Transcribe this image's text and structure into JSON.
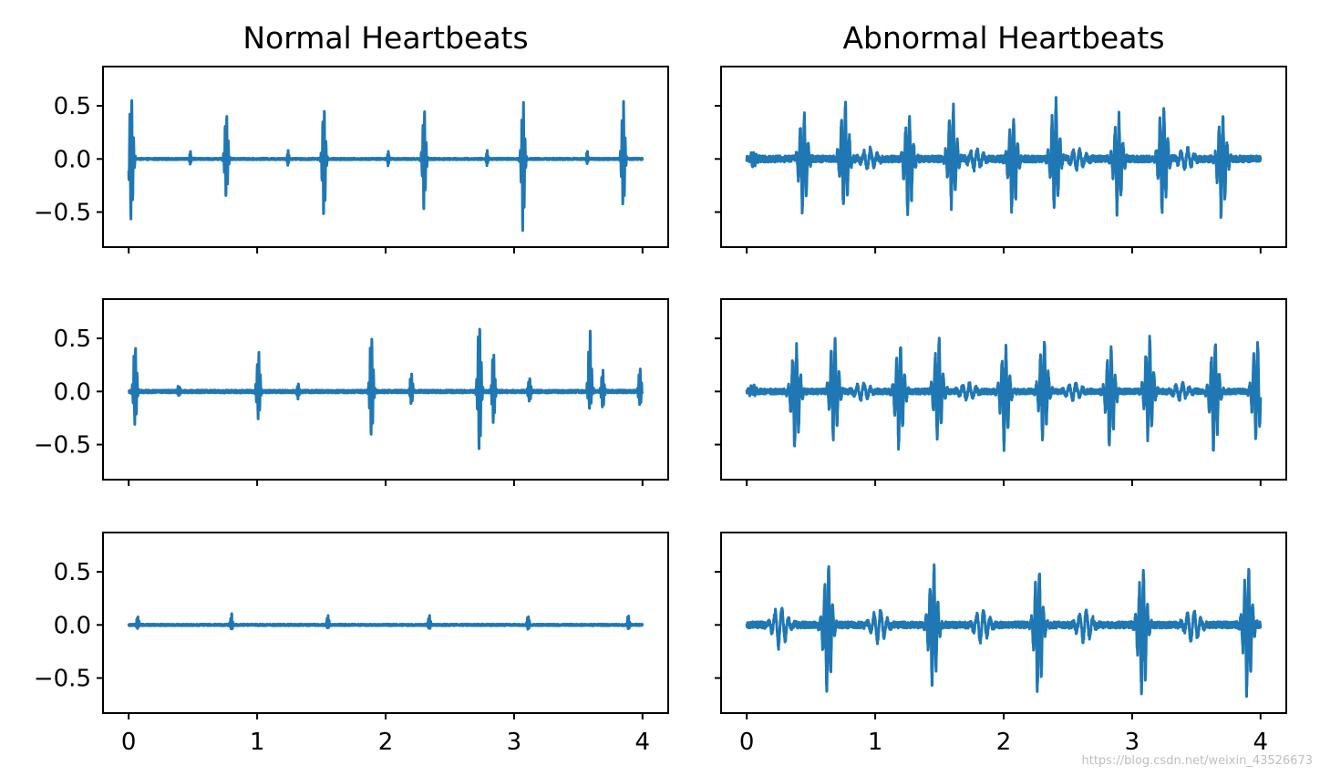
{
  "watermark": "https://blog.csdn.net/weixin_43526673",
  "chart_data": {
    "type": "line",
    "layout": {
      "rows": 3,
      "cols": 2,
      "sharex": true,
      "sharey": true
    },
    "column_titles": [
      "Normal Heartbeats",
      "Abnormal Heartbeats"
    ],
    "xlim": [
      -0.2,
      4.2
    ],
    "ylim": [
      -0.83,
      0.87
    ],
    "x_ticks": [
      0,
      1,
      2,
      3,
      4
    ],
    "x_tick_labels": [
      "0",
      "1",
      "2",
      "3",
      "4"
    ],
    "y_ticks": [
      -0.5,
      0.0,
      0.5
    ],
    "y_tick_labels": [
      "−0.5",
      "0.0",
      "0.5"
    ],
    "line_color": "#1f77b4",
    "x_range": [
      0,
      4
    ],
    "subplots": [
      {
        "row": 0,
        "col": 0,
        "noise": 0.008,
        "beats": [
          {
            "x": 0.02,
            "amp": 0.68,
            "neg": -0.68,
            "w": 0.014
          },
          {
            "x": 0.76,
            "amp": 0.5,
            "neg": -0.4,
            "w": 0.012
          },
          {
            "x": 1.52,
            "amp": 0.55,
            "neg": -0.6,
            "w": 0.012
          },
          {
            "x": 2.3,
            "amp": 0.52,
            "neg": -0.53,
            "w": 0.012
          },
          {
            "x": 3.07,
            "amp": 0.6,
            "neg": -0.74,
            "w": 0.012
          },
          {
            "x": 3.85,
            "amp": 0.59,
            "neg": -0.53,
            "w": 0.012
          },
          {
            "x": 0.48,
            "amp": 0.09,
            "neg": -0.06,
            "w": 0.006
          },
          {
            "x": 1.24,
            "amp": 0.1,
            "neg": -0.07,
            "w": 0.006
          },
          {
            "x": 2.02,
            "amp": 0.09,
            "neg": -0.07,
            "w": 0.006
          },
          {
            "x": 2.79,
            "amp": 0.08,
            "neg": -0.07,
            "w": 0.006
          },
          {
            "x": 3.57,
            "amp": 0.09,
            "neg": -0.06,
            "w": 0.006
          }
        ]
      },
      {
        "row": 0,
        "col": 1,
        "noise": 0.03,
        "beats": [
          {
            "x": 0.44,
            "amp": 0.46,
            "neg": -0.59,
            "w": 0.03
          },
          {
            "x": 0.76,
            "amp": 0.62,
            "neg": -0.52,
            "w": 0.03
          },
          {
            "x": 1.26,
            "amp": 0.44,
            "neg": -0.59,
            "w": 0.03
          },
          {
            "x": 1.6,
            "amp": 0.57,
            "neg": -0.5,
            "w": 0.03
          },
          {
            "x": 2.07,
            "amp": 0.44,
            "neg": -0.58,
            "w": 0.03
          },
          {
            "x": 2.4,
            "amp": 0.61,
            "neg": -0.52,
            "w": 0.03
          },
          {
            "x": 2.89,
            "amp": 0.45,
            "neg": -0.56,
            "w": 0.03
          },
          {
            "x": 3.24,
            "amp": 0.57,
            "neg": -0.56,
            "w": 0.03
          },
          {
            "x": 3.7,
            "amp": 0.44,
            "neg": -0.58,
            "w": 0.03
          },
          {
            "x": 0.05,
            "amp": 0.07,
            "neg": -0.08,
            "w": 0.02
          },
          {
            "x": 0.95,
            "amp": 0.1,
            "neg": -0.1,
            "w": 0.05
          },
          {
            "x": 1.78,
            "amp": 0.1,
            "neg": -0.1,
            "w": 0.05
          },
          {
            "x": 2.58,
            "amp": 0.1,
            "neg": -0.1,
            "w": 0.05
          },
          {
            "x": 3.42,
            "amp": 0.1,
            "neg": -0.1,
            "w": 0.05
          }
        ]
      },
      {
        "row": 1,
        "col": 0,
        "noise": 0.014,
        "beats": [
          {
            "x": 0.05,
            "amp": 0.53,
            "neg": -0.36,
            "w": 0.012
          },
          {
            "x": 1.01,
            "amp": 0.44,
            "neg": -0.3,
            "w": 0.012
          },
          {
            "x": 1.89,
            "amp": 0.66,
            "neg": -0.52,
            "w": 0.012
          },
          {
            "x": 2.73,
            "amp": 0.79,
            "neg": -0.62,
            "w": 0.012
          },
          {
            "x": 2.84,
            "amp": 0.46,
            "neg": -0.38,
            "w": 0.01
          },
          {
            "x": 3.59,
            "amp": 0.68,
            "neg": -0.2,
            "w": 0.012
          },
          {
            "x": 3.69,
            "amp": 0.24,
            "neg": -0.18,
            "w": 0.01
          },
          {
            "x": 3.98,
            "amp": 0.27,
            "neg": -0.16,
            "w": 0.01
          },
          {
            "x": 0.39,
            "amp": 0.06,
            "neg": -0.05,
            "w": 0.008
          },
          {
            "x": 1.32,
            "amp": 0.09,
            "neg": -0.07,
            "w": 0.008
          },
          {
            "x": 2.2,
            "amp": 0.2,
            "neg": -0.15,
            "w": 0.01
          },
          {
            "x": 3.12,
            "amp": 0.15,
            "neg": -0.12,
            "w": 0.01
          }
        ]
      },
      {
        "row": 1,
        "col": 1,
        "noise": 0.025,
        "beats": [
          {
            "x": 0.38,
            "amp": 0.47,
            "neg": -0.61,
            "w": 0.03
          },
          {
            "x": 0.68,
            "amp": 0.55,
            "neg": -0.5,
            "w": 0.03
          },
          {
            "x": 1.19,
            "amp": 0.48,
            "neg": -0.6,
            "w": 0.03
          },
          {
            "x": 1.49,
            "amp": 0.56,
            "neg": -0.5,
            "w": 0.03
          },
          {
            "x": 2.01,
            "amp": 0.46,
            "neg": -0.59,
            "w": 0.03
          },
          {
            "x": 2.31,
            "amp": 0.55,
            "neg": -0.5,
            "w": 0.03
          },
          {
            "x": 2.83,
            "amp": 0.45,
            "neg": -0.61,
            "w": 0.03
          },
          {
            "x": 3.13,
            "amp": 0.56,
            "neg": -0.5,
            "w": 0.03
          },
          {
            "x": 3.64,
            "amp": 0.52,
            "neg": -0.61,
            "w": 0.03
          },
          {
            "x": 3.97,
            "amp": 0.56,
            "neg": -0.5,
            "w": 0.03
          },
          {
            "x": 0.05,
            "amp": 0.06,
            "neg": -0.05,
            "w": 0.02
          },
          {
            "x": 0.9,
            "amp": 0.08,
            "neg": -0.08,
            "w": 0.05
          },
          {
            "x": 1.72,
            "amp": 0.08,
            "neg": -0.08,
            "w": 0.05
          },
          {
            "x": 2.55,
            "amp": 0.08,
            "neg": -0.08,
            "w": 0.05
          },
          {
            "x": 3.38,
            "amp": 0.08,
            "neg": -0.08,
            "w": 0.05
          }
        ]
      },
      {
        "row": 2,
        "col": 0,
        "noise": 0.008,
        "beats": [
          {
            "x": 0.07,
            "amp": 0.1,
            "neg": -0.04,
            "w": 0.008
          },
          {
            "x": 0.8,
            "amp": 0.12,
            "neg": -0.05,
            "w": 0.008
          },
          {
            "x": 1.55,
            "amp": 0.11,
            "neg": -0.04,
            "w": 0.008
          },
          {
            "x": 2.34,
            "amp": 0.12,
            "neg": -0.04,
            "w": 0.008
          },
          {
            "x": 3.11,
            "amp": 0.11,
            "neg": -0.05,
            "w": 0.008
          },
          {
            "x": 3.89,
            "amp": 0.1,
            "neg": -0.05,
            "w": 0.008
          }
        ]
      },
      {
        "row": 2,
        "col": 1,
        "noise": 0.03,
        "beats": [
          {
            "x": 0.63,
            "amp": 0.6,
            "neg": -0.75,
            "w": 0.03
          },
          {
            "x": 1.45,
            "amp": 0.59,
            "neg": -0.67,
            "w": 0.03
          },
          {
            "x": 2.27,
            "amp": 0.59,
            "neg": -0.74,
            "w": 0.03
          },
          {
            "x": 3.08,
            "amp": 0.6,
            "neg": -0.76,
            "w": 0.03
          },
          {
            "x": 3.9,
            "amp": 0.61,
            "neg": -0.75,
            "w": 0.03
          },
          {
            "x": 0.26,
            "amp": 0.18,
            "neg": -0.22,
            "w": 0.05
          },
          {
            "x": 1.03,
            "amp": 0.15,
            "neg": -0.18,
            "w": 0.05
          },
          {
            "x": 1.83,
            "amp": 0.14,
            "neg": -0.16,
            "w": 0.05
          },
          {
            "x": 2.63,
            "amp": 0.15,
            "neg": -0.17,
            "w": 0.05
          },
          {
            "x": 3.47,
            "amp": 0.15,
            "neg": -0.17,
            "w": 0.05
          }
        ]
      }
    ]
  }
}
